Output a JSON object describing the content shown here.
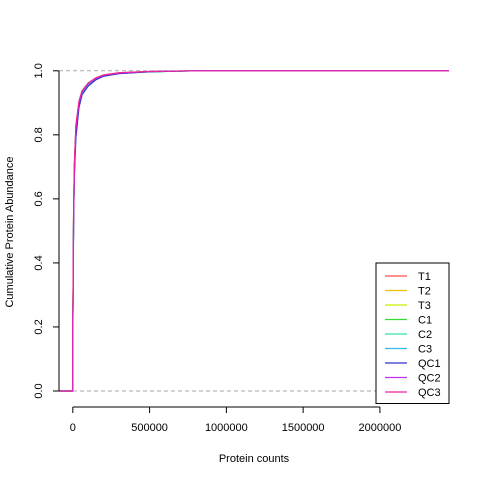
{
  "chart_data": {
    "type": "line",
    "title": "",
    "xlabel": "Protein counts",
    "ylabel": "Cumulative Protein Abundance",
    "xlim": [
      -90000,
      2450000
    ],
    "ylim": [
      -0.05,
      1.04
    ],
    "x_ticks": [
      0,
      500000,
      1000000,
      1500000,
      2000000
    ],
    "x_tick_labels": [
      "0",
      "500000",
      "1000000",
      "1500000",
      "2000000"
    ],
    "y_ticks": [
      0.0,
      0.2,
      0.4,
      0.6,
      0.8,
      1.0
    ],
    "y_tick_labels": [
      "0.0",
      "0.2",
      "0.4",
      "0.6",
      "0.8",
      "1.0"
    ],
    "reference_lines_y": [
      0.0,
      1.0
    ],
    "reference_line_color": "#aaaaaa",
    "grid": false,
    "legend_position": "bottom-right",
    "series": [
      {
        "name": "T1",
        "color": "#ff4d4d",
        "x": [
          -90000,
          0,
          1,
          5000,
          10000,
          20000,
          40000,
          60000,
          100000,
          150000,
          200000,
          300000,
          500000,
          800000,
          2450000
        ],
        "y": [
          0,
          0,
          0.2,
          0.55,
          0.7,
          0.82,
          0.9,
          0.935,
          0.96,
          0.977,
          0.986,
          0.993,
          0.998,
          1.0,
          1.0
        ]
      },
      {
        "name": "T2",
        "color": "#e8c000",
        "x": [
          -90000,
          0,
          1,
          5000,
          10000,
          20000,
          40000,
          60000,
          100000,
          150000,
          200000,
          300000,
          500000,
          800000,
          2450000
        ],
        "y": [
          0,
          0,
          0.21,
          0.56,
          0.71,
          0.83,
          0.905,
          0.938,
          0.962,
          0.978,
          0.987,
          0.994,
          0.998,
          1.0,
          1.0
        ]
      },
      {
        "name": "T3",
        "color": "#c8f000",
        "x": [
          -90000,
          0,
          1,
          5000,
          10000,
          20000,
          40000,
          60000,
          100000,
          150000,
          200000,
          300000,
          500000,
          800000,
          2450000
        ],
        "y": [
          0,
          0,
          0.2,
          0.55,
          0.7,
          0.82,
          0.9,
          0.936,
          0.961,
          0.977,
          0.986,
          0.993,
          0.998,
          1.0,
          1.0
        ]
      },
      {
        "name": "C1",
        "color": "#33dd33",
        "x": [
          -90000,
          0,
          1,
          5000,
          10000,
          20000,
          40000,
          60000,
          100000,
          150000,
          200000,
          300000,
          500000,
          800000,
          2450000
        ],
        "y": [
          0,
          0,
          0.19,
          0.54,
          0.69,
          0.81,
          0.895,
          0.932,
          0.958,
          0.975,
          0.985,
          0.992,
          0.997,
          1.0,
          1.0
        ]
      },
      {
        "name": "C2",
        "color": "#33e0b0",
        "x": [
          -90000,
          0,
          1,
          5000,
          10000,
          20000,
          40000,
          60000,
          100000,
          150000,
          200000,
          300000,
          500000,
          800000,
          2450000
        ],
        "y": [
          0,
          0,
          0.19,
          0.54,
          0.69,
          0.81,
          0.895,
          0.931,
          0.957,
          0.975,
          0.985,
          0.992,
          0.997,
          1.0,
          1.0
        ]
      },
      {
        "name": "C3",
        "color": "#33b8f0",
        "x": [
          -90000,
          0,
          1,
          5000,
          10000,
          20000,
          40000,
          60000,
          100000,
          150000,
          200000,
          300000,
          500000,
          800000,
          2450000
        ],
        "y": [
          0,
          0,
          0.18,
          0.53,
          0.68,
          0.8,
          0.89,
          0.928,
          0.955,
          0.974,
          0.984,
          0.992,
          0.997,
          1.0,
          1.0
        ]
      },
      {
        "name": "QC1",
        "color": "#3333cc",
        "x": [
          -90000,
          0,
          1,
          5000,
          10000,
          20000,
          40000,
          60000,
          100000,
          150000,
          200000,
          300000,
          500000,
          800000,
          2450000
        ],
        "y": [
          0,
          0,
          0.18,
          0.52,
          0.67,
          0.79,
          0.885,
          0.925,
          0.952,
          0.972,
          0.983,
          0.991,
          0.997,
          1.0,
          1.0
        ]
      },
      {
        "name": "QC2",
        "color": "#c030f0",
        "x": [
          -90000,
          0,
          1,
          5000,
          10000,
          20000,
          40000,
          60000,
          100000,
          150000,
          200000,
          300000,
          500000,
          800000,
          2450000
        ],
        "y": [
          0,
          0,
          0.2,
          0.55,
          0.7,
          0.82,
          0.9,
          0.934,
          0.96,
          0.976,
          0.986,
          0.993,
          0.998,
          1.0,
          1.0
        ]
      },
      {
        "name": "QC3",
        "color": "#f020a0",
        "x": [
          -90000,
          0,
          1,
          5000,
          10000,
          20000,
          40000,
          60000,
          100000,
          150000,
          200000,
          300000,
          500000,
          800000,
          2450000
        ],
        "y": [
          0,
          0,
          0.21,
          0.56,
          0.71,
          0.83,
          0.905,
          0.937,
          0.962,
          0.978,
          0.987,
          0.994,
          0.998,
          1.0,
          1.0
        ]
      }
    ]
  }
}
